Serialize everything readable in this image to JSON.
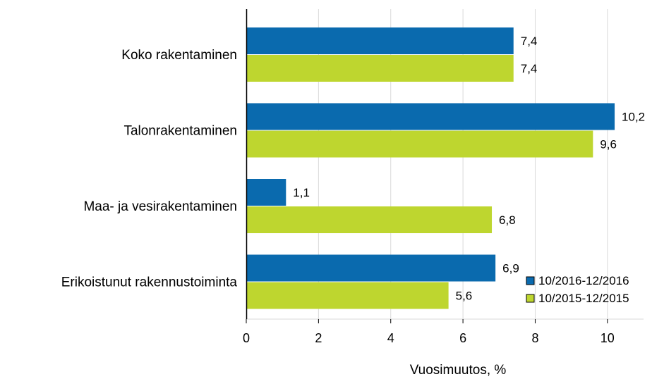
{
  "chart_data": {
    "type": "bar",
    "orientation": "horizontal",
    "title": "",
    "xlabel": "Vuosimuutos, %",
    "ylabel": "",
    "categories": [
      "Koko rakentaminen",
      "Talonrakentaminen",
      "Maa- ja vesirakentaminen",
      "Erikoistunut rakennustoiminta"
    ],
    "series": [
      {
        "name": "10/2016-12/2016",
        "color": "#0a6aae",
        "values": [
          7.4,
          10.2,
          1.1,
          6.9
        ],
        "labels": [
          "7,4",
          "10,2",
          "1,1",
          "6,9"
        ]
      },
      {
        "name": "10/2015-12/2015",
        "color": "#bed62f",
        "values": [
          7.4,
          9.6,
          6.8,
          5.6
        ],
        "labels": [
          "7,4",
          "9,6",
          "6,8",
          "5,6"
        ]
      }
    ],
    "xlim": [
      0,
      11
    ],
    "xticks": [
      0,
      2,
      4,
      6,
      8,
      10
    ],
    "xtick_labels": [
      "0",
      "2",
      "4",
      "6",
      "8",
      "10"
    ],
    "grid": "vertical",
    "legend_position": "bottom-right"
  }
}
